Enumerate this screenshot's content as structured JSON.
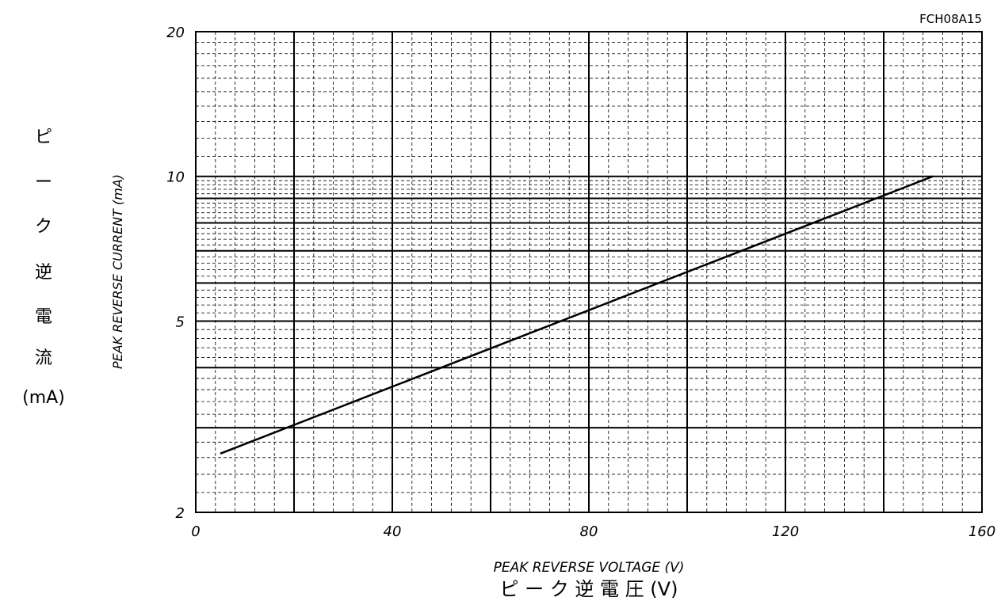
{
  "chart_data": {
    "type": "line",
    "figure_code": "FCH08A15",
    "x_scale": "linear",
    "y_scale": "log",
    "xlim": [
      0,
      160
    ],
    "ylim": [
      2,
      20
    ],
    "x_ticks": [
      "0",
      "40",
      "80",
      "120",
      "160"
    ],
    "y_ticks": [
      "2",
      "5",
      "10",
      "20"
    ],
    "x_tick_values": [
      0,
      40,
      80,
      120,
      160
    ],
    "y_tick_values": [
      2,
      5,
      10,
      20
    ],
    "xlabel": "PEAK REVERSE VOLTAGE (V)",
    "xlabel_jp": "ピ ー ク 逆 電 圧  (V)",
    "ylabel": "PEAK REVERSE CURRENT (mA)",
    "ylabel_jp": [
      "ピ",
      "ー",
      "ク",
      "逆",
      "電",
      "流",
      "(mA)"
    ],
    "grid": "on",
    "series": [
      {
        "x": [
          5,
          150
        ],
        "y": [
          2.65,
          10
        ]
      }
    ]
  }
}
